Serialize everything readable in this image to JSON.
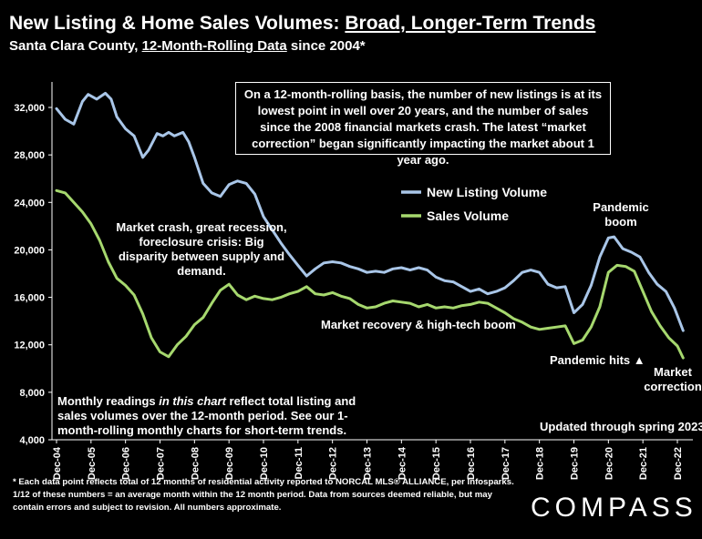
{
  "header": {
    "title_part1": "New Listing & Home Sales Volumes: ",
    "title_part2": "Broad, Longer-Term Trends",
    "subtitle_part1": "Santa Clara County, ",
    "subtitle_part2": "12-Month-Rolling Data",
    "subtitle_part3": " since 2004*"
  },
  "annotations": {
    "callout": "On a 12-month-rolling basis, the number of new listings is at its lowest point in well over 20 years, and the number of sales since the 2008 financial markets crash. The latest “market correction” began significantly impacting the market about 1 year ago.",
    "market_crash": "Market crash,  great recession, foreclosure crisis: Big disparity between supply and demand.",
    "recovery": "Market recovery & high-tech boom",
    "pandemic_hits": "Pandemic hits ▲",
    "pandemic_boom": "Pandemic boom",
    "market_correction": "Market correction",
    "monthly_readings_1": "Monthly readings ",
    "monthly_readings_2": "in this chart",
    "monthly_readings_3": " reflect total listing and sales volumes over the 12-month period. See our 1-month-rolling monthly charts for short-term trends.",
    "updated": "Updated through spring 2023"
  },
  "footnote": "* Each data point reflects total of 12 months of residential activity reported to NORCAL MLS® ALLIANCE, per Infosparks. 1/12 of these numbers = an average month within the 12 month period. Data from sources deemed reliable, but may contain errors and subject to revision. All numbers approximate.",
  "logo": "COMPASS",
  "colors": {
    "listing": "#a9c6e8",
    "sales": "#a6d86e",
    "background": "#000000"
  },
  "chart_data": {
    "type": "line",
    "title": "New Listing & Home Sales Volumes: Broad, Longer-Term Trends",
    "subtitle": "Santa Clara County, 12-Month-Rolling Data since 2004*",
    "x_tick_labels": [
      "Dec-04",
      "Dec-05",
      "Dec-06",
      "Dec-07",
      "Dec-08",
      "Dec-09",
      "Dec-10",
      "Dec-11",
      "Dec-12",
      "Dec-13",
      "Dec-14",
      "Dec-15",
      "Dec-16",
      "Dec-17",
      "Dec-18",
      "Dec-19",
      "Dec-20",
      "Dec-21",
      "Dec-22"
    ],
    "y_tick_labels": [
      "4,000",
      "8,000",
      "12,000",
      "16,000",
      "20,000",
      "24,000",
      "28,000",
      "32,000"
    ],
    "ylim": [
      4000,
      34000
    ],
    "xlim": [
      "2004-12",
      "2023-04"
    ],
    "grid": false,
    "legend": "inside, upper right of center",
    "series": [
      {
        "name": "New Listing Volume",
        "color": "#a9c6e8",
        "points": [
          [
            "2004-12",
            31900
          ],
          [
            "2005-03",
            31000
          ],
          [
            "2005-06",
            30600
          ],
          [
            "2005-09",
            32500
          ],
          [
            "2005-11",
            33100
          ],
          [
            "2006-02",
            32700
          ],
          [
            "2006-05",
            33200
          ],
          [
            "2006-07",
            32700
          ],
          [
            "2006-09",
            31200
          ],
          [
            "2006-12",
            30200
          ],
          [
            "2007-03",
            29600
          ],
          [
            "2007-06",
            27800
          ],
          [
            "2007-08",
            28400
          ],
          [
            "2007-11",
            29800
          ],
          [
            "2008-01",
            29600
          ],
          [
            "2008-03",
            29900
          ],
          [
            "2008-05",
            29600
          ],
          [
            "2008-08",
            29900
          ],
          [
            "2008-10",
            29100
          ],
          [
            "2008-12",
            27800
          ],
          [
            "2009-03",
            25600
          ],
          [
            "2009-06",
            24800
          ],
          [
            "2009-09",
            24500
          ],
          [
            "2009-12",
            25500
          ],
          [
            "2010-03",
            25800
          ],
          [
            "2010-06",
            25600
          ],
          [
            "2010-09",
            24700
          ],
          [
            "2010-12",
            22800
          ],
          [
            "2011-03",
            21700
          ],
          [
            "2011-06",
            20600
          ],
          [
            "2011-09",
            19600
          ],
          [
            "2011-12",
            18700
          ],
          [
            "2012-03",
            17800
          ],
          [
            "2012-06",
            18400
          ],
          [
            "2012-09",
            18900
          ],
          [
            "2012-12",
            19000
          ],
          [
            "2013-03",
            18900
          ],
          [
            "2013-06",
            18600
          ],
          [
            "2013-09",
            18400
          ],
          [
            "2013-12",
            18100
          ],
          [
            "2014-03",
            18200
          ],
          [
            "2014-06",
            18100
          ],
          [
            "2014-09",
            18400
          ],
          [
            "2014-12",
            18500
          ],
          [
            "2015-03",
            18300
          ],
          [
            "2015-06",
            18500
          ],
          [
            "2015-09",
            18300
          ],
          [
            "2015-12",
            17700
          ],
          [
            "2016-03",
            17400
          ],
          [
            "2016-06",
            17300
          ],
          [
            "2016-09",
            16900
          ],
          [
            "2016-12",
            16500
          ],
          [
            "2017-03",
            16700
          ],
          [
            "2017-06",
            16300
          ],
          [
            "2017-09",
            16500
          ],
          [
            "2017-12",
            16800
          ],
          [
            "2018-03",
            17400
          ],
          [
            "2018-06",
            18100
          ],
          [
            "2018-09",
            18300
          ],
          [
            "2018-12",
            18100
          ],
          [
            "2019-03",
            17100
          ],
          [
            "2019-06",
            16800
          ],
          [
            "2019-09",
            16900
          ],
          [
            "2019-12",
            14700
          ],
          [
            "2020-03",
            15400
          ],
          [
            "2020-06",
            17000
          ],
          [
            "2020-09",
            19400
          ],
          [
            "2020-12",
            21000
          ],
          [
            "2021-02",
            21100
          ],
          [
            "2021-05",
            20100
          ],
          [
            "2021-08",
            19800
          ],
          [
            "2021-11",
            19400
          ],
          [
            "2022-02",
            18100
          ],
          [
            "2022-05",
            17100
          ],
          [
            "2022-08",
            16500
          ],
          [
            "2022-11",
            15100
          ],
          [
            "2023-02",
            13200
          ]
        ]
      },
      {
        "name": "Sales Volume",
        "color": "#a6d86e",
        "points": [
          [
            "2004-12",
            25000
          ],
          [
            "2005-03",
            24800
          ],
          [
            "2005-06",
            24000
          ],
          [
            "2005-09",
            23200
          ],
          [
            "2005-12",
            22200
          ],
          [
            "2006-03",
            20800
          ],
          [
            "2006-06",
            19000
          ],
          [
            "2006-09",
            17600
          ],
          [
            "2006-12",
            17000
          ],
          [
            "2007-03",
            16200
          ],
          [
            "2007-06",
            14600
          ],
          [
            "2007-09",
            12600
          ],
          [
            "2007-12",
            11400
          ],
          [
            "2008-03",
            11000
          ],
          [
            "2008-06",
            12000
          ],
          [
            "2008-09",
            12700
          ],
          [
            "2008-12",
            13700
          ],
          [
            "2009-03",
            14300
          ],
          [
            "2009-06",
            15500
          ],
          [
            "2009-09",
            16600
          ],
          [
            "2009-12",
            17100
          ],
          [
            "2010-03",
            16200
          ],
          [
            "2010-06",
            15800
          ],
          [
            "2010-09",
            16100
          ],
          [
            "2010-12",
            15900
          ],
          [
            "2011-03",
            15800
          ],
          [
            "2011-06",
            16000
          ],
          [
            "2011-09",
            16300
          ],
          [
            "2011-12",
            16500
          ],
          [
            "2012-03",
            16900
          ],
          [
            "2012-06",
            16300
          ],
          [
            "2012-09",
            16200
          ],
          [
            "2012-12",
            16400
          ],
          [
            "2013-03",
            16100
          ],
          [
            "2013-06",
            15900
          ],
          [
            "2013-09",
            15400
          ],
          [
            "2013-12",
            15100
          ],
          [
            "2014-03",
            15200
          ],
          [
            "2014-06",
            15500
          ],
          [
            "2014-09",
            15700
          ],
          [
            "2014-12",
            15600
          ],
          [
            "2015-03",
            15500
          ],
          [
            "2015-06",
            15200
          ],
          [
            "2015-09",
            15400
          ],
          [
            "2015-12",
            15100
          ],
          [
            "2016-03",
            15200
          ],
          [
            "2016-06",
            15100
          ],
          [
            "2016-09",
            15300
          ],
          [
            "2016-12",
            15400
          ],
          [
            "2017-03",
            15600
          ],
          [
            "2017-06",
            15500
          ],
          [
            "2017-09",
            15100
          ],
          [
            "2017-12",
            14700
          ],
          [
            "2018-03",
            14200
          ],
          [
            "2018-06",
            13900
          ],
          [
            "2018-09",
            13500
          ],
          [
            "2018-12",
            13300
          ],
          [
            "2019-03",
            13400
          ],
          [
            "2019-06",
            13500
          ],
          [
            "2019-09",
            13600
          ],
          [
            "2019-12",
            12100
          ],
          [
            "2020-03",
            12400
          ],
          [
            "2020-06",
            13500
          ],
          [
            "2020-09",
            15200
          ],
          [
            "2020-12",
            18100
          ],
          [
            "2021-03",
            18700
          ],
          [
            "2021-06",
            18600
          ],
          [
            "2021-09",
            18200
          ],
          [
            "2021-12",
            16500
          ],
          [
            "2022-03",
            14800
          ],
          [
            "2022-06",
            13600
          ],
          [
            "2022-09",
            12600
          ],
          [
            "2022-12",
            11900
          ],
          [
            "2023-02",
            10900
          ]
        ]
      }
    ]
  }
}
